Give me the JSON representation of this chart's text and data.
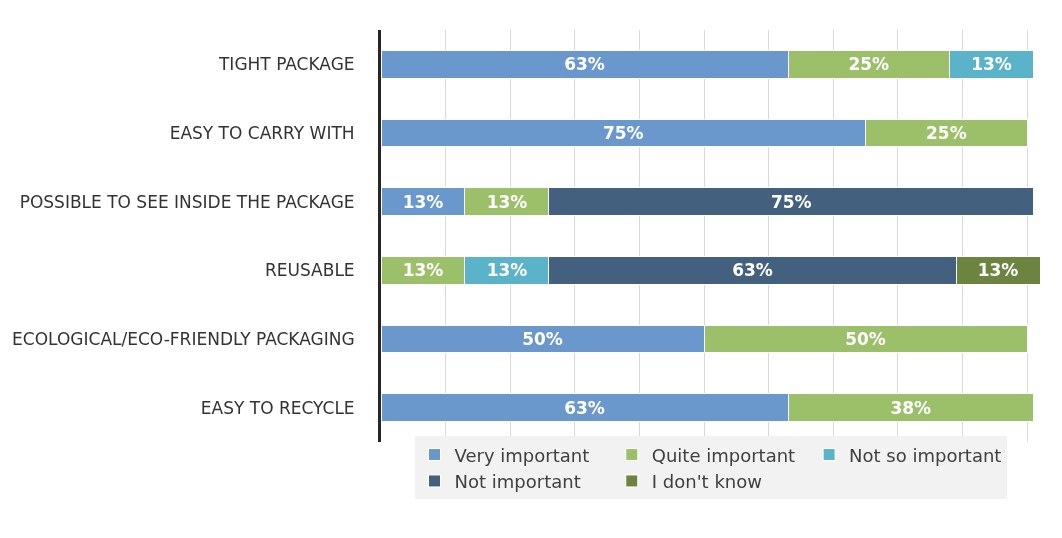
{
  "chart_data": {
    "type": "bar",
    "orientation": "horizontal",
    "stacked": true,
    "categories": [
      "TIGHT PACKAGE",
      "EASY TO CARRY WITH",
      "POSSIBLE TO SEE INSIDE THE PACKAGE",
      "REUSABLE",
      "ECOLOGICAL/ECO-FRIENDLY PACKAGING",
      "EASY TO RECYCLE"
    ],
    "series": [
      {
        "name": "Very important",
        "color": "#6a97cc",
        "values": [
          63,
          75,
          13,
          null,
          50,
          63
        ],
        "value_labels": [
          "63%",
          "75%",
          "13%",
          null,
          "50%",
          "63%"
        ]
      },
      {
        "name": "Quite important",
        "color": "#9cbf6a",
        "values": [
          25,
          25,
          13,
          13,
          50,
          38
        ],
        "value_labels": [
          "25%",
          "25%",
          "13%",
          "13%",
          "50%",
          "38%"
        ]
      },
      {
        "name": "Not so important",
        "color": "#5bb3c9",
        "values": [
          13,
          null,
          null,
          13,
          null,
          null
        ],
        "value_labels": [
          "13%",
          null,
          null,
          "13%",
          null,
          null
        ]
      },
      {
        "name": "Not important",
        "color": "#44607f",
        "values": [
          null,
          null,
          75,
          63,
          null,
          null
        ],
        "value_labels": [
          null,
          null,
          "75%",
          "63%",
          null,
          null
        ]
      },
      {
        "name": "I don't know",
        "color": "#6b8440",
        "values": [
          null,
          null,
          null,
          13,
          null,
          null
        ],
        "value_labels": [
          null,
          null,
          null,
          "13%",
          null,
          null
        ]
      }
    ],
    "xlim": [
      0,
      102
    ],
    "xticks": [
      {
        "value": 0,
        "label": null
      },
      {
        "value": 10,
        "label": null
      },
      {
        "value": 20,
        "label": null
      },
      {
        "value": 30,
        "label": null
      },
      {
        "value": 40,
        "label": null
      },
      {
        "value": 50,
        "label": null
      },
      {
        "value": 60,
        "label": null
      },
      {
        "value": 70,
        "label": null
      },
      {
        "value": 80,
        "label": null
      },
      {
        "value": 90,
        "label": null
      },
      {
        "value": 100,
        "label": null
      }
    ],
    "grid": "x",
    "legend": "bottom",
    "tick_labels": "y"
  }
}
